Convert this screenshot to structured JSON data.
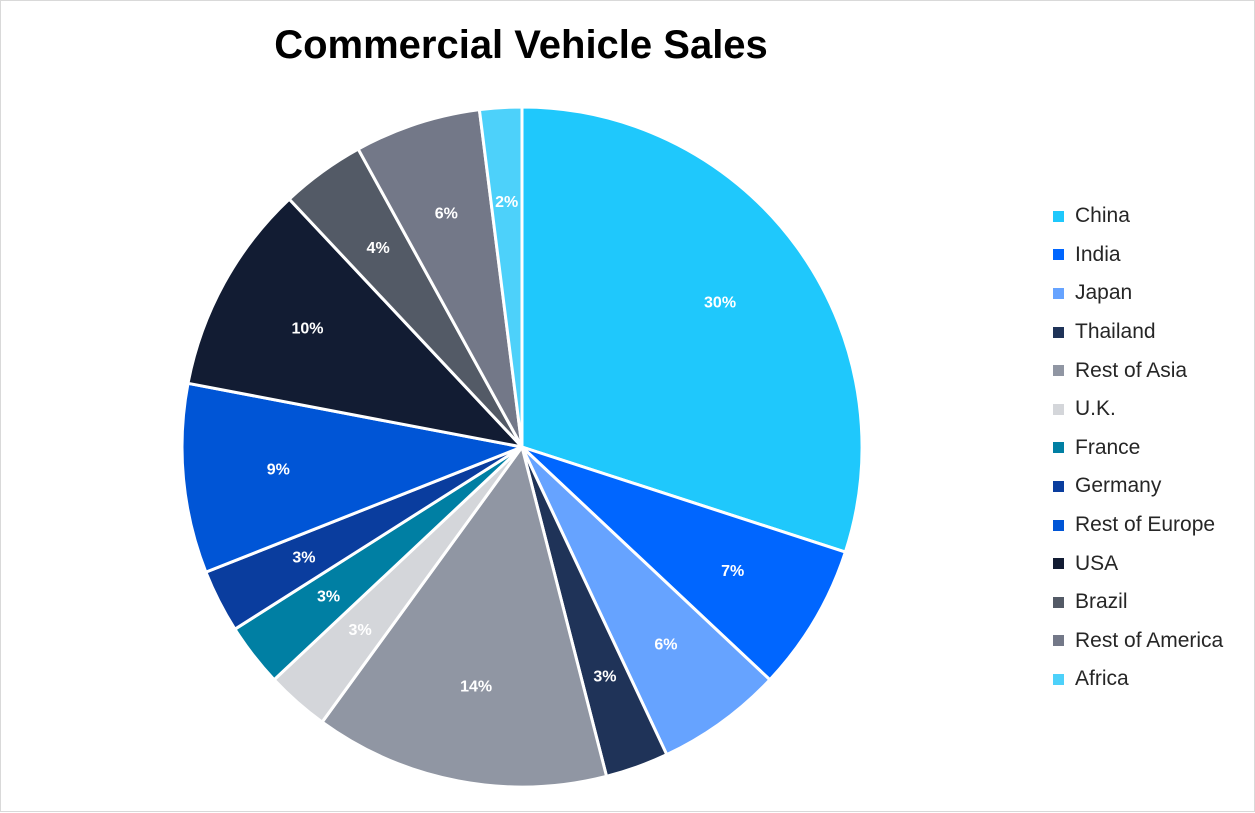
{
  "chart_data": {
    "type": "pie",
    "title": "Commercial Vehicle Sales",
    "start_angle_deg": 0,
    "direction": "clockwise",
    "legend_position": "right",
    "slices": [
      {
        "name": "China",
        "value": 30,
        "label": "30%",
        "color": "#1fc8fc"
      },
      {
        "name": "India",
        "value": 7,
        "label": "7%",
        "color": "#0066ff"
      },
      {
        "name": "Japan",
        "value": 6,
        "label": "6%",
        "color": "#66a3ff"
      },
      {
        "name": "Thailand",
        "value": 3,
        "label": "3%",
        "color": "#1f3358"
      },
      {
        "name": "Rest of Asia",
        "value": 14,
        "label": "14%",
        "color": "#9096a3"
      },
      {
        "name": "U.K.",
        "value": 3,
        "label": "3%",
        "color": "#d4d6da"
      },
      {
        "name": "France",
        "value": 3,
        "label": "3%",
        "color": "#007fa3"
      },
      {
        "name": "Germany",
        "value": 3,
        "label": "3%",
        "color": "#0a3d9e"
      },
      {
        "name": "Rest of Europe",
        "value": 9,
        "label": "9%",
        "color": "#0055d6"
      },
      {
        "name": "USA",
        "value": 10,
        "label": "10%",
        "color": "#121c33"
      },
      {
        "name": "Brazil",
        "value": 4,
        "label": "4%",
        "color": "#535a66"
      },
      {
        "name": "Rest of America",
        "value": 6,
        "label": "6%",
        "color": "#737888"
      },
      {
        "name": "Africa",
        "value": 2,
        "label": "2%",
        "color": "#4dd1fa"
      }
    ]
  }
}
